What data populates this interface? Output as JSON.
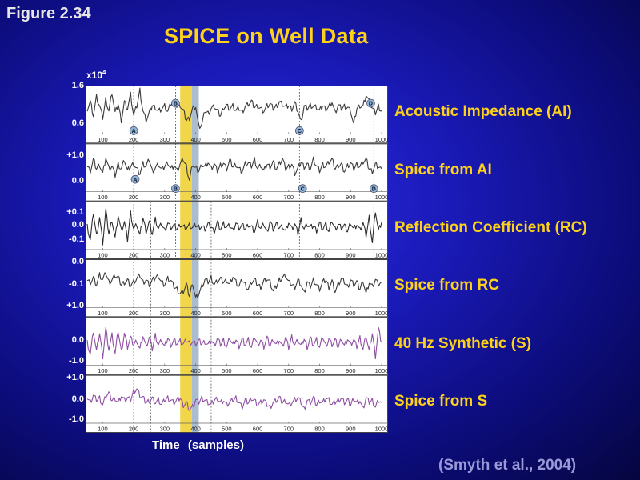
{
  "figure_label": "Figure 2.34",
  "title": "SPICE on Well Data",
  "scale_label_base": "x10",
  "scale_label_exp": "4",
  "x_axis_label": "Time  (samples)",
  "citation": "(Smyth et al., 2004)",
  "chart_data": {
    "type": "line",
    "x_range": [
      50,
      1000
    ],
    "x_ticks": [
      "100",
      "200",
      "300",
      "400",
      "500",
      "600",
      "700",
      "800",
      "900",
      "1000"
    ],
    "x_tick_values": [
      100,
      200,
      300,
      400,
      500,
      600,
      700,
      800,
      900,
      1000
    ],
    "highlight_bands": [
      {
        "from": 350,
        "to": 388,
        "color": "#f1d54a"
      },
      {
        "from": 388,
        "to": 410,
        "color": "#a9bcd0"
      }
    ],
    "markers": [
      {
        "label": "A",
        "panel": 0,
        "x": 200,
        "pos": "bottom"
      },
      {
        "label": "B",
        "panel": 0,
        "x": 335,
        "pos": "top"
      },
      {
        "label": "C",
        "panel": 0,
        "x": 735,
        "pos": "bottom"
      },
      {
        "label": "D",
        "panel": 0,
        "x": 965,
        "pos": "top"
      },
      {
        "label": "A",
        "panel": 1,
        "x": 205,
        "pos": "mid"
      },
      {
        "label": "B",
        "panel": 1,
        "x": 335,
        "pos": "bottom"
      },
      {
        "label": "C",
        "panel": 1,
        "x": 745,
        "pos": "bottom"
      },
      {
        "label": "D",
        "panel": 1,
        "x": 975,
        "pos": "bottom"
      }
    ],
    "dashed_lines": [
      {
        "x": 200,
        "panels": [
          0,
          5
        ]
      },
      {
        "x": 335,
        "panels": [
          0,
          2
        ]
      },
      {
        "x": 735,
        "panels": [
          0,
          2
        ]
      },
      {
        "x": 975,
        "panels": [
          0,
          2
        ]
      },
      {
        "x": 255,
        "panels": [
          2,
          5
        ]
      },
      {
        "x": 450,
        "panels": [
          2,
          5
        ]
      }
    ],
    "series": [
      {
        "name": "Acoustic Impedance (AI)",
        "color": "#3a3a3a",
        "y_ticks": [
          {
            "label": "1.6",
            "frac": 0.0
          },
          {
            "label": "0.6",
            "frac": 0.78
          }
        ],
        "values": [
          0.55,
          0.7,
          0.4,
          0.8,
          0.6,
          0.35,
          0.75,
          0.5,
          0.9,
          0.45,
          0.65,
          0.3,
          0.7,
          0.55,
          0.85,
          0.4,
          0.6,
          0.95,
          0.5,
          0.3,
          0.45,
          0.62,
          0.58,
          0.5,
          0.55,
          0.6,
          0.48,
          0.65,
          0.7,
          0.58,
          0.62,
          0.5,
          0.3,
          0.35,
          0.55,
          0.6,
          0.15,
          0.2,
          0.5,
          0.45,
          0.55,
          0.6,
          0.5,
          0.4,
          0.58,
          0.62,
          0.55,
          0.6,
          0.5,
          0.55,
          0.48,
          0.6,
          0.65,
          0.7,
          0.58,
          0.62,
          0.55,
          0.5,
          0.6,
          0.65,
          0.55,
          0.6,
          0.7,
          0.65,
          0.58,
          0.62,
          0.55,
          0.68,
          0.5,
          0.25,
          0.6,
          0.55,
          0.62,
          0.6,
          0.58,
          0.5,
          0.62,
          0.55,
          0.6,
          0.7,
          0.45,
          0.62,
          0.55,
          0.6,
          0.58,
          0.5,
          0.2,
          0.55,
          0.62,
          0.6,
          0.85,
          0.7,
          0.55,
          0.45,
          0.6,
          0.5
        ]
      },
      {
        "name": "Spice from AI",
        "color": "#3a3a3a",
        "y_ticks": [
          {
            "label": "+1.0",
            "frac": 0.25
          },
          {
            "label": "0.0",
            "frac": 0.78
          }
        ],
        "values": [
          0.55,
          0.45,
          0.7,
          0.5,
          0.6,
          0.4,
          0.75,
          0.5,
          0.55,
          0.35,
          0.6,
          0.5,
          0.7,
          0.45,
          0.55,
          0.62,
          0.5,
          0.4,
          0.6,
          0.55,
          0.7,
          0.45,
          0.52,
          0.6,
          0.48,
          0.55,
          0.65,
          0.5,
          0.58,
          0.45,
          0.6,
          0.7,
          0.55,
          0.25,
          0.6,
          0.5,
          0.45,
          0.6,
          0.55,
          0.65,
          0.5,
          0.6,
          0.45,
          0.58,
          0.62,
          0.5,
          0.68,
          0.55,
          0.6,
          0.5,
          0.45,
          0.6,
          0.62,
          0.55,
          0.7,
          0.5,
          0.58,
          0.45,
          0.6,
          0.55,
          0.65,
          0.5,
          0.6,
          0.72,
          0.5,
          0.55,
          0.6,
          0.4,
          0.5,
          0.65,
          0.55,
          0.6,
          0.5,
          0.7,
          0.55,
          0.45,
          0.6,
          0.55,
          0.65,
          0.7,
          0.5,
          0.58,
          0.6,
          0.45,
          0.55,
          0.62,
          0.5,
          0.6,
          0.55,
          0.65,
          0.7,
          0.5,
          0.45,
          0.6,
          0.55,
          0.5
        ]
      },
      {
        "name": "Reflection Coefficient (RC)",
        "color": "#2e2e2e",
        "y_ticks": [
          {
            "label": "+0.1",
            "frac": 0.22
          },
          {
            "label": "0.0",
            "frac": 0.48
          },
          {
            "label": "-0.1",
            "frac": 0.78
          }
        ],
        "values": [
          0.5,
          0.2,
          0.8,
          0.3,
          0.7,
          0.15,
          0.85,
          0.35,
          0.65,
          0.25,
          0.75,
          0.4,
          0.6,
          0.2,
          0.8,
          0.45,
          0.55,
          0.3,
          0.7,
          0.4,
          0.6,
          0.35,
          0.65,
          0.45,
          0.55,
          0.42,
          0.58,
          0.48,
          0.52,
          0.45,
          0.55,
          0.5,
          0.48,
          0.52,
          0.47,
          0.53,
          0.49,
          0.51,
          0.45,
          0.55,
          0.5,
          0.4,
          0.6,
          0.45,
          0.55,
          0.48,
          0.52,
          0.42,
          0.58,
          0.47,
          0.53,
          0.45,
          0.55,
          0.5,
          0.4,
          0.6,
          0.45,
          0.55,
          0.38,
          0.62,
          0.45,
          0.55,
          0.48,
          0.52,
          0.4,
          0.6,
          0.45,
          0.55,
          0.35,
          0.65,
          0.45,
          0.55,
          0.48,
          0.52,
          0.42,
          0.58,
          0.45,
          0.55,
          0.38,
          0.62,
          0.45,
          0.55,
          0.48,
          0.52,
          0.4,
          0.6,
          0.45,
          0.55,
          0.42,
          0.58,
          0.3,
          0.7,
          0.15,
          0.85,
          0.4,
          0.6
        ]
      },
      {
        "name": "Spice from RC",
        "color": "#3a3a3a",
        "y_ticks": [
          {
            "label": "0.0",
            "frac": 0.05
          },
          {
            "label": "-0.1",
            "frac": 0.52
          },
          {
            "label": "+1.0",
            "frac": 0.96
          }
        ],
        "values": [
          0.6,
          0.55,
          0.65,
          0.5,
          0.7,
          0.6,
          0.75,
          0.55,
          0.6,
          0.7,
          0.65,
          0.5,
          0.55,
          0.6,
          0.48,
          0.55,
          0.62,
          0.7,
          0.55,
          0.6,
          0.5,
          0.58,
          0.65,
          0.7,
          0.55,
          0.5,
          0.62,
          0.58,
          0.45,
          0.4,
          0.3,
          0.35,
          0.5,
          0.25,
          0.55,
          0.2,
          0.3,
          0.45,
          0.6,
          0.55,
          0.65,
          0.5,
          0.58,
          0.62,
          0.55,
          0.6,
          0.5,
          0.68,
          0.55,
          0.45,
          0.6,
          0.5,
          0.4,
          0.55,
          0.6,
          0.5,
          0.45,
          0.58,
          0.62,
          0.55,
          0.35,
          0.45,
          0.6,
          0.65,
          0.7,
          0.55,
          0.5,
          0.45,
          0.6,
          0.5,
          0.3,
          0.55,
          0.45,
          0.6,
          0.5,
          0.4,
          0.55,
          0.6,
          0.45,
          0.58,
          0.35,
          0.5,
          0.62,
          0.55,
          0.45,
          0.6,
          0.5,
          0.55,
          0.4,
          0.6,
          0.3,
          0.55,
          0.45,
          0.6,
          0.5,
          0.55
        ]
      },
      {
        "name": "40 Hz Synthetic (S)",
        "color": "#8e4fa3",
        "y_ticks": [
          {
            "label": "0.0",
            "frac": 0.48
          },
          {
            "label": "-1.0",
            "frac": 0.9
          }
        ],
        "values": [
          0.5,
          0.25,
          0.75,
          0.3,
          0.7,
          0.2,
          0.8,
          0.35,
          0.65,
          0.25,
          0.75,
          0.3,
          0.7,
          0.4,
          0.6,
          0.45,
          0.55,
          0.35,
          0.65,
          0.4,
          0.6,
          0.35,
          0.65,
          0.45,
          0.55,
          0.4,
          0.6,
          0.45,
          0.55,
          0.48,
          0.52,
          0.46,
          0.54,
          0.49,
          0.51,
          0.47,
          0.53,
          0.48,
          0.52,
          0.45,
          0.55,
          0.42,
          0.58,
          0.45,
          0.55,
          0.4,
          0.6,
          0.44,
          0.56,
          0.42,
          0.58,
          0.45,
          0.55,
          0.38,
          0.62,
          0.45,
          0.55,
          0.4,
          0.6,
          0.42,
          0.58,
          0.45,
          0.55,
          0.4,
          0.6,
          0.38,
          0.62,
          0.45,
          0.55,
          0.42,
          0.58,
          0.4,
          0.6,
          0.45,
          0.55,
          0.38,
          0.62,
          0.42,
          0.58,
          0.45,
          0.55,
          0.4,
          0.6,
          0.42,
          0.58,
          0.45,
          0.55,
          0.4,
          0.6,
          0.35,
          0.65,
          0.3,
          0.7,
          0.2,
          0.8,
          0.5
        ]
      },
      {
        "name": "Spice from S",
        "color": "#8e4fa3",
        "y_ticks": [
          {
            "label": "+1.0",
            "frac": 0.05
          },
          {
            "label": "0.0",
            "frac": 0.5
          },
          {
            "label": "-1.0",
            "frac": 0.92
          }
        ],
        "values": [
          0.55,
          0.45,
          0.6,
          0.5,
          0.55,
          0.4,
          0.6,
          0.65,
          0.5,
          0.55,
          0.45,
          0.6,
          0.5,
          0.55,
          0.5,
          0.7,
          0.75,
          0.6,
          0.55,
          0.45,
          0.5,
          0.55,
          0.45,
          0.5,
          0.4,
          0.5,
          0.55,
          0.5,
          0.45,
          0.5,
          0.55,
          0.4,
          0.45,
          0.3,
          0.35,
          0.5,
          0.45,
          0.55,
          0.5,
          0.45,
          0.4,
          0.5,
          0.55,
          0.45,
          0.5,
          0.4,
          0.45,
          0.5,
          0.55,
          0.45,
          0.35,
          0.5,
          0.45,
          0.55,
          0.5,
          0.4,
          0.45,
          0.5,
          0.4,
          0.35,
          0.45,
          0.5,
          0.55,
          0.45,
          0.5,
          0.4,
          0.45,
          0.5,
          0.55,
          0.45,
          0.3,
          0.5,
          0.45,
          0.55,
          0.4,
          0.5,
          0.45,
          0.55,
          0.5,
          0.4,
          0.45,
          0.5,
          0.55,
          0.45,
          0.5,
          0.4,
          0.55,
          0.45,
          0.5,
          0.3,
          0.55,
          0.45,
          0.5,
          0.35,
          0.5,
          0.45
        ]
      }
    ]
  }
}
